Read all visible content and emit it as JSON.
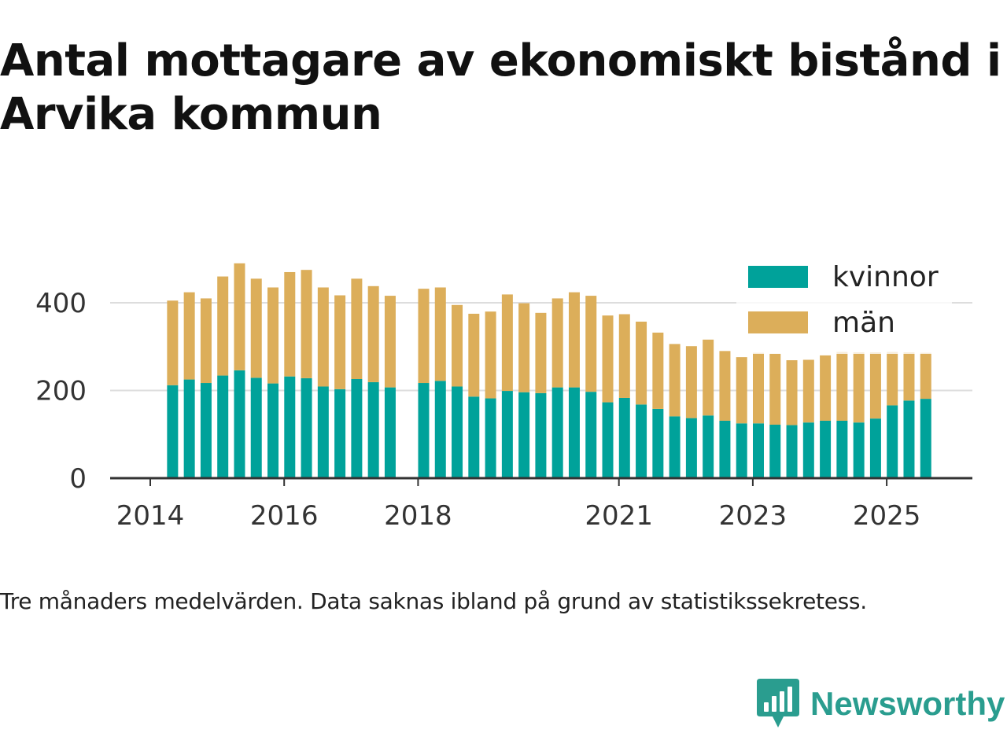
{
  "title": "Antal mottagare av ekonomiskt bistånd i Arvika kommun",
  "note": "Tre månaders medelvärden. Data saknas ibland på grund av statistikssekretess.",
  "brand": {
    "name": "Newsworthy",
    "icon": "newsworthy-logo-icon"
  },
  "colors": {
    "kvinnor": "#00a29a",
    "man": "#dcae5a",
    "grid": "#dddddd",
    "axis": "#333333"
  },
  "chart_data": {
    "type": "bar",
    "stacked": true,
    "title": "Antal mottagare av ekonomiskt bistånd i Arvika kommun",
    "ylim": [
      0,
      490
    ],
    "yticks": [
      0,
      200,
      400
    ],
    "xtick_labels": [
      {
        "label": "2014",
        "date": "2014-01"
      },
      {
        "label": "2016",
        "date": "2016-01"
      },
      {
        "label": "2018",
        "date": "2018-01"
      },
      {
        "label": "2021",
        "date": "2021-01"
      },
      {
        "label": "2023",
        "date": "2023-01"
      },
      {
        "label": "2025",
        "date": "2025-01"
      }
    ],
    "legend": {
      "placement": "top-right",
      "entries": [
        "kvinnor",
        "män"
      ]
    },
    "grid": true,
    "periods": [
      "2014-05",
      "2014-08",
      "2014-11",
      "2015-02",
      "2015-05",
      "2015-08",
      "2015-11",
      "2016-02",
      "2016-05",
      "2016-08",
      "2016-11",
      "2017-02",
      "2017-05",
      "2017-08",
      "2018-02",
      "2018-05",
      "2018-08",
      "2018-11",
      "2019-02",
      "2019-05",
      "2019-08",
      "2019-11",
      "2020-02",
      "2020-05",
      "2020-08",
      "2020-11",
      "2021-02",
      "2021-05",
      "2021-08",
      "2021-11",
      "2022-02",
      "2022-05",
      "2022-08",
      "2022-11",
      "2023-02",
      "2023-05",
      "2023-08",
      "2023-11",
      "2024-02",
      "2024-05",
      "2024-08",
      "2024-11",
      "2025-02",
      "2025-05",
      "2025-08"
    ],
    "series": [
      {
        "name": "kvinnor",
        "values": [
          212,
          225,
          217,
          234,
          246,
          229,
          216,
          232,
          228,
          209,
          203,
          226,
          219,
          207,
          217,
          222,
          209,
          186,
          182,
          199,
          196,
          194,
          207,
          207,
          197,
          173,
          183,
          168,
          158,
          141,
          137,
          143,
          131,
          125,
          125,
          122,
          121,
          127,
          131,
          131,
          127,
          136,
          166,
          177,
          181
        ]
      },
      {
        "name": "män",
        "values": [
          193,
          199,
          193,
          226,
          244,
          226,
          219,
          238,
          247,
          226,
          214,
          229,
          219,
          209,
          215,
          213,
          186,
          189,
          198,
          220,
          203,
          183,
          203,
          217,
          219,
          198,
          191,
          189,
          174,
          165,
          164,
          173,
          159,
          151,
          161,
          162,
          148,
          143,
          149,
          157,
          160,
          151,
          122,
          110,
          105
        ]
      }
    ]
  }
}
